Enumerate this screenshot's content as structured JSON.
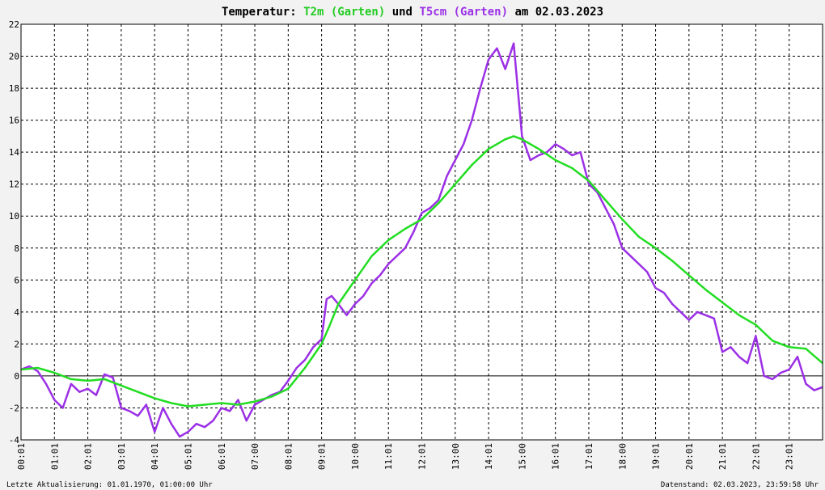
{
  "title": {
    "prefix": "Temperatur:",
    "series1": "T2m (Garten)",
    "conj": "und",
    "series2": "T5cm (Garten)",
    "suffix": "am 02.03.2023"
  },
  "footer": {
    "left": "Letzte Aktualisierung: 01.01.1970, 01:00:00 Uhr",
    "right": "Datenstand: 02.03.2023, 23:59:58 Uhr"
  },
  "chart_data": {
    "type": "line",
    "title": "Temperatur: T2m (Garten) und T5cm (Garten) am 02.03.2023",
    "xlabel": "",
    "ylabel": "",
    "xlim": [
      0,
      24
    ],
    "ylim": [
      -4,
      22
    ],
    "y_ticks": [
      "-4",
      "-2",
      "0",
      "2",
      "4",
      "6",
      "8",
      "10",
      "12",
      "14",
      "16",
      "18",
      "20",
      "22"
    ],
    "x_ticks": [
      "00:01",
      "01:01",
      "02:01",
      "03:01",
      "04:01",
      "05:01",
      "06:01",
      "07:00",
      "08:01",
      "09:01",
      "10:00",
      "11:01",
      "12:01",
      "13:00",
      "14:01",
      "15:00",
      "16:01",
      "17:01",
      "18:00",
      "19:01",
      "20:01",
      "21:01",
      "22:01",
      "23:01"
    ],
    "grid": true,
    "colors": {
      "T2m": "#22dd22",
      "T5cm": "#9b30e6",
      "grid": "#000000",
      "background": "#ffffff"
    },
    "series": [
      {
        "name": "T2m (Garten)",
        "x": [
          0,
          0.5,
          1,
          1.5,
          2,
          2.5,
          3,
          3.5,
          4,
          4.5,
          5,
          5.5,
          6,
          6.5,
          7,
          7.5,
          8,
          8.5,
          9,
          9.25,
          9.5,
          10,
          10.5,
          11,
          11.5,
          12,
          12.5,
          13,
          13.5,
          14,
          14.5,
          14.75,
          15,
          15.5,
          16,
          16.5,
          17,
          17.5,
          18,
          18.5,
          19,
          19.5,
          20,
          20.5,
          21,
          21.5,
          22,
          22.5,
          23,
          23.5,
          24
        ],
        "values": [
          0.4,
          0.5,
          0.2,
          -0.2,
          -0.3,
          -0.2,
          -0.6,
          -1.0,
          -1.4,
          -1.7,
          -1.9,
          -1.8,
          -1.7,
          -1.8,
          -1.6,
          -1.3,
          -0.8,
          0.5,
          2.0,
          3.2,
          4.5,
          6.0,
          7.5,
          8.5,
          9.2,
          9.8,
          10.8,
          12.0,
          13.2,
          14.2,
          14.8,
          15.0,
          14.8,
          14.2,
          13.5,
          13.0,
          12.2,
          11.0,
          9.8,
          8.7,
          8.0,
          7.2,
          6.3,
          5.4,
          4.6,
          3.8,
          3.2,
          2.2,
          1.8,
          1.7,
          0.8
        ]
      },
      {
        "name": "T5cm (Garten)",
        "x": [
          0,
          0.25,
          0.5,
          0.75,
          1,
          1.25,
          1.5,
          1.75,
          2,
          2.25,
          2.5,
          2.75,
          3,
          3.25,
          3.5,
          3.75,
          4,
          4.25,
          4.5,
          4.75,
          5,
          5.25,
          5.5,
          5.75,
          6,
          6.25,
          6.5,
          6.75,
          7,
          7.25,
          7.5,
          7.75,
          8,
          8.25,
          8.5,
          8.75,
          9,
          9.15,
          9.3,
          9.5,
          9.75,
          10,
          10.25,
          10.5,
          10.75,
          11,
          11.25,
          11.5,
          11.75,
          12,
          12.25,
          12.5,
          12.75,
          13,
          13.25,
          13.5,
          13.75,
          14,
          14.25,
          14.5,
          14.75,
          15,
          15.25,
          15.5,
          15.75,
          16,
          16.25,
          16.5,
          16.75,
          17,
          17.25,
          17.5,
          17.75,
          18,
          18.25,
          18.5,
          18.75,
          19,
          19.25,
          19.5,
          19.75,
          20,
          20.25,
          20.5,
          20.75,
          21,
          21.25,
          21.5,
          21.75,
          22,
          22.25,
          22.5,
          22.75,
          23,
          23.25,
          23.5,
          23.75,
          24
        ],
        "values": [
          0.4,
          0.6,
          0.3,
          -0.5,
          -1.5,
          -2.0,
          -0.5,
          -1.0,
          -0.8,
          -1.2,
          0.1,
          -0.1,
          -2.0,
          -2.2,
          -2.5,
          -1.8,
          -3.5,
          -2.0,
          -3.0,
          -3.8,
          -3.5,
          -3.0,
          -3.2,
          -2.8,
          -2.0,
          -2.2,
          -1.5,
          -2.8,
          -1.8,
          -1.5,
          -1.2,
          -1.0,
          -0.3,
          0.5,
          1.0,
          1.8,
          2.3,
          4.8,
          5.0,
          4.5,
          3.8,
          4.5,
          5.0,
          5.8,
          6.3,
          7.0,
          7.5,
          8.0,
          9.0,
          10.2,
          10.5,
          11.0,
          12.5,
          13.5,
          14.5,
          16.0,
          18.0,
          19.8,
          20.5,
          19.2,
          20.8,
          15.0,
          13.5,
          13.8,
          14.0,
          14.5,
          14.2,
          13.8,
          14.0,
          12.0,
          11.5,
          10.5,
          9.5,
          8.0,
          7.5,
          7.0,
          6.5,
          5.5,
          5.2,
          4.5,
          4.0,
          3.5,
          4.0,
          3.8,
          3.6,
          1.5,
          1.8,
          1.2,
          0.8,
          2.5,
          0.0,
          -0.2,
          0.2,
          0.4,
          1.2,
          -0.5,
          -0.9,
          -0.7
        ]
      }
    ]
  }
}
